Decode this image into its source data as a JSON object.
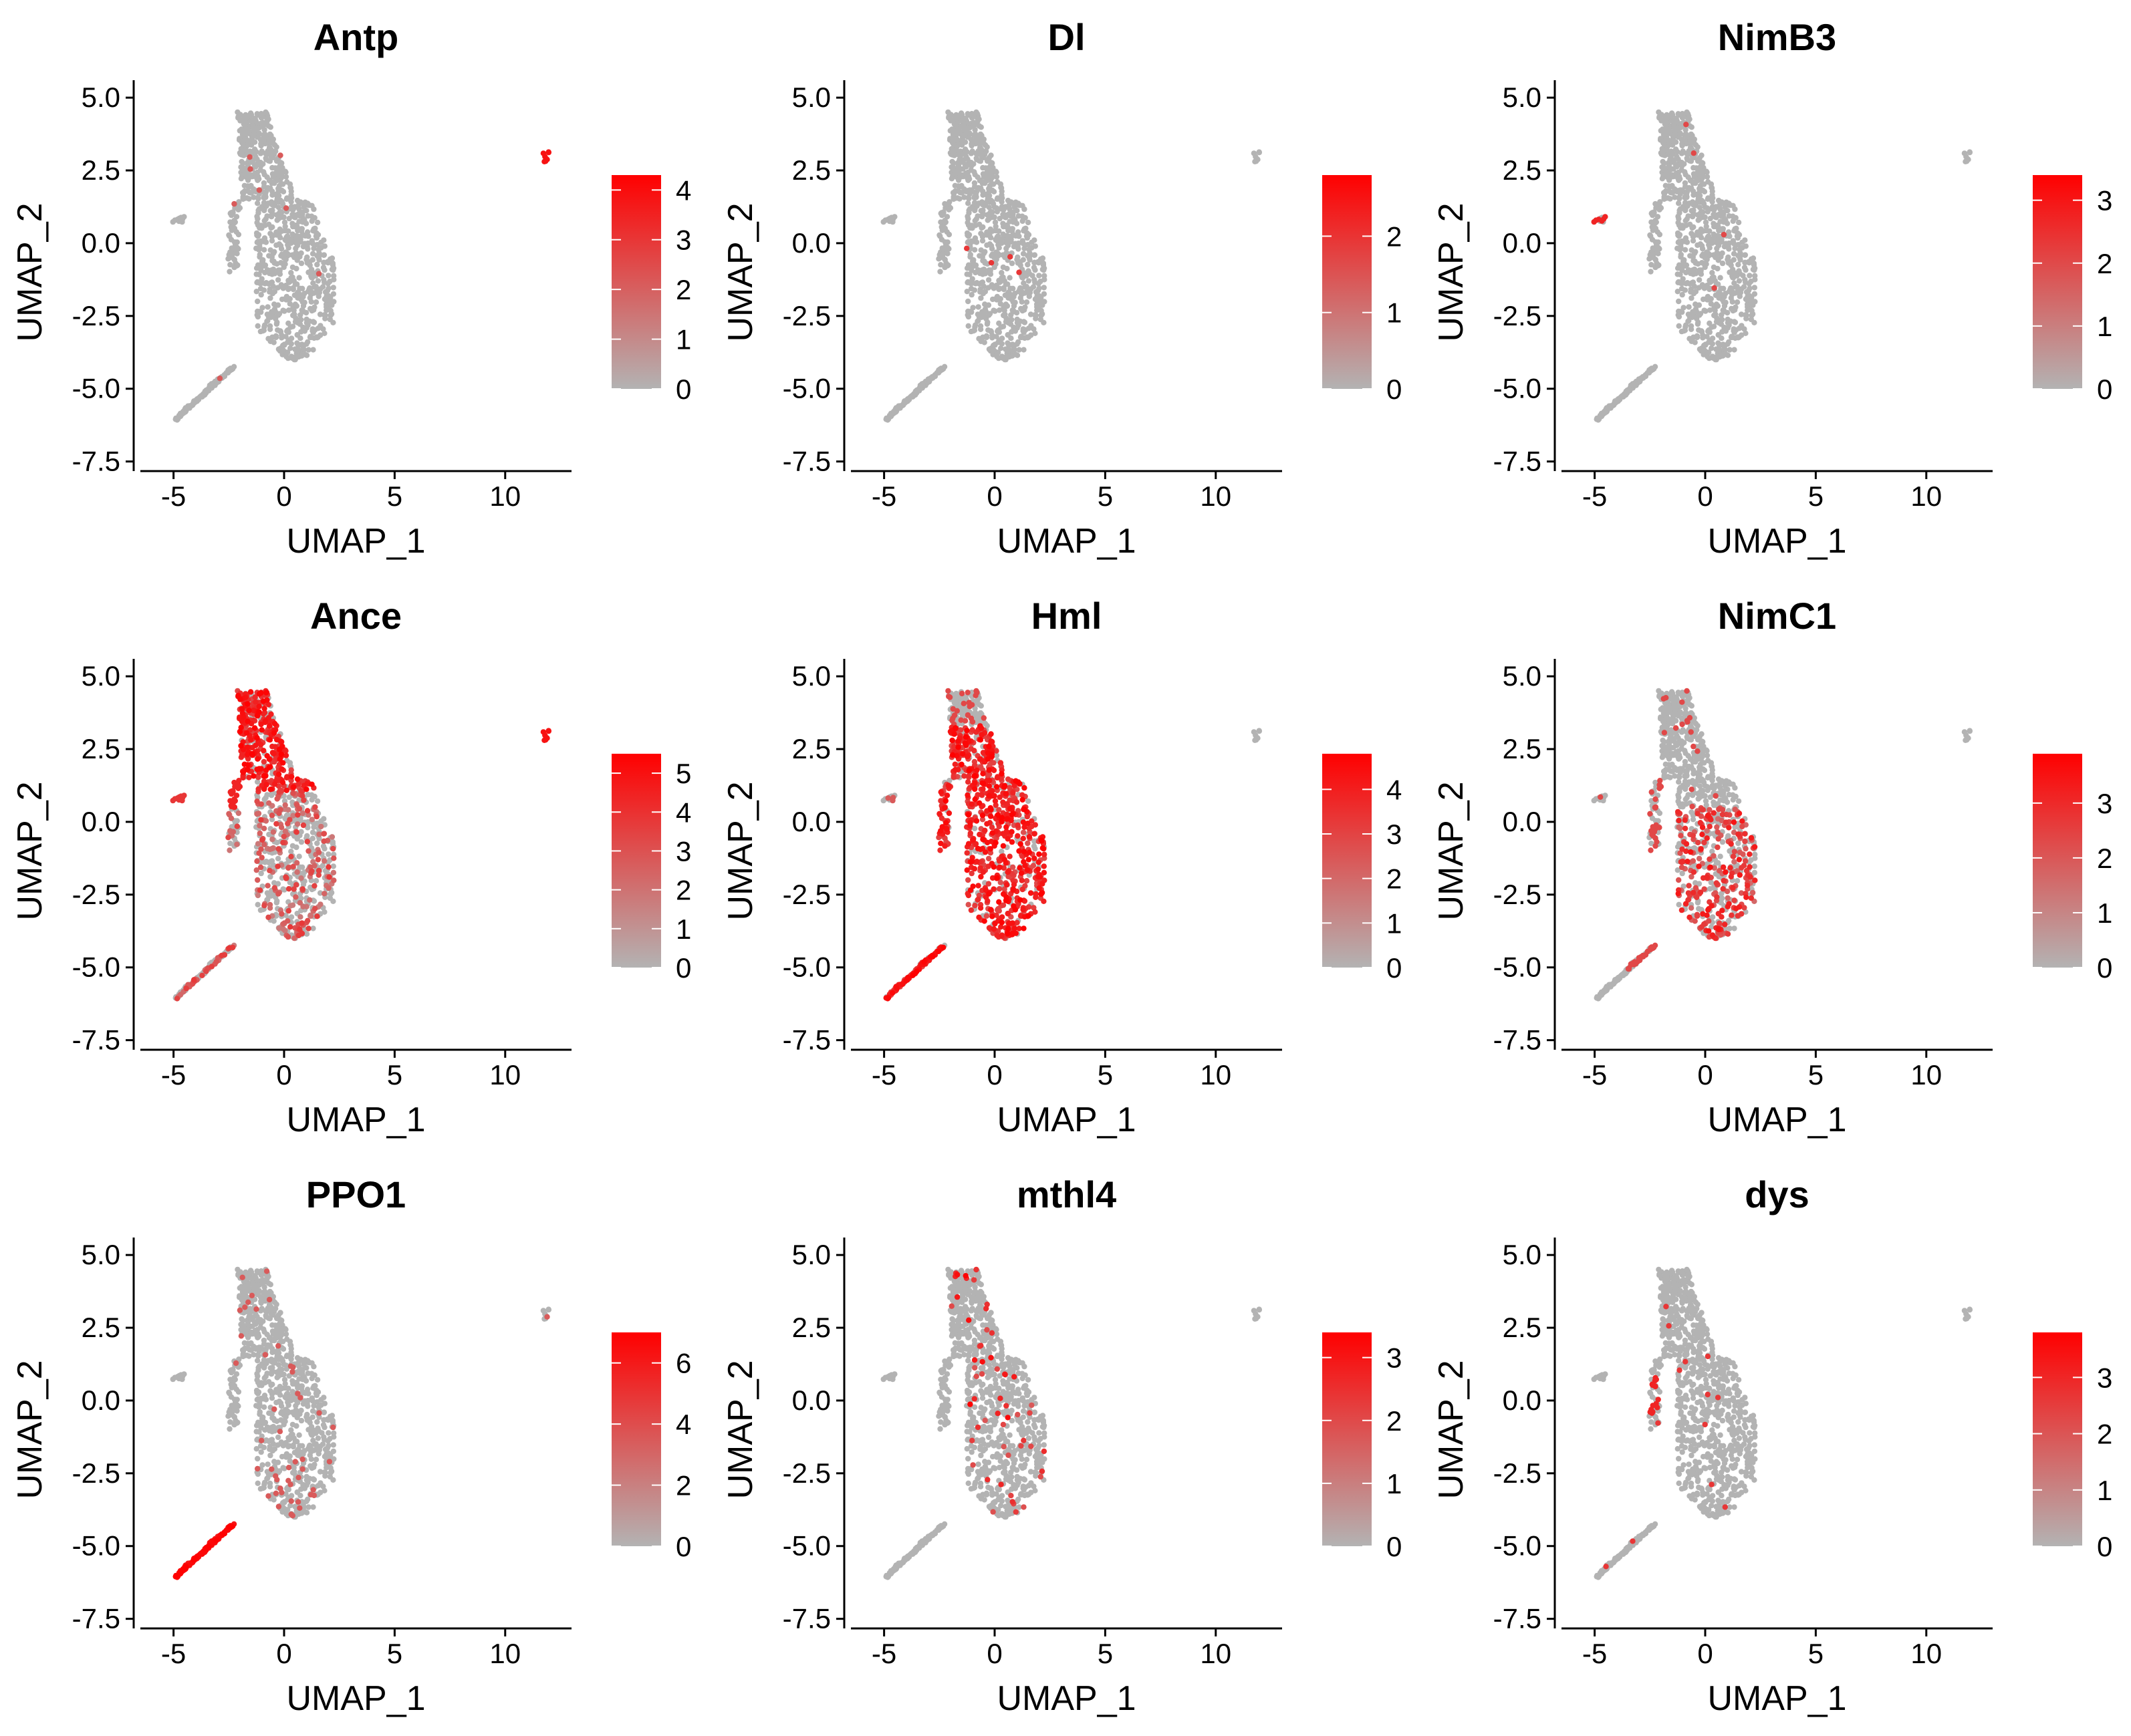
{
  "figure": {
    "colors": {
      "low": "#b3b3b3",
      "high": "#ff0000",
      "axis": "#000000",
      "background": "#ffffff"
    }
  },
  "chart_data": [
    {
      "type": "scatter",
      "title": "Antp",
      "xlabel": "UMAP_1",
      "ylabel": "UMAP_2",
      "xlim": [
        -6.5,
        13
      ],
      "ylim": [
        -7.6,
        5.6
      ],
      "xticks": [
        "-5",
        "0",
        "5",
        "10"
      ],
      "yticks": [
        "5.0",
        "2.5",
        "0.0",
        "-2.5",
        "-5.0",
        "-7.5"
      ],
      "legend": {
        "range": [
          0,
          4.3
        ],
        "ticks": [
          "4",
          "3",
          "2",
          "1",
          "0"
        ],
        "tick_values": [
          4,
          3,
          2,
          1,
          0
        ]
      },
      "highlight": "island"
    },
    {
      "type": "scatter",
      "title": "Dl",
      "xlabel": "UMAP_1",
      "ylabel": "UMAP_2",
      "xlim": [
        -6.5,
        13
      ],
      "ylim": [
        -7.6,
        5.6
      ],
      "xticks": [
        "-5",
        "0",
        "5",
        "10"
      ],
      "yticks": [
        "5.0",
        "2.5",
        "0.0",
        "-2.5",
        "-5.0",
        "-7.5"
      ],
      "legend": {
        "range": [
          0,
          2.8
        ],
        "ticks": [
          "2",
          "1",
          "0"
        ],
        "tick_values": [
          2,
          1,
          0
        ]
      },
      "highlight": "few"
    },
    {
      "type": "scatter",
      "title": "NimB3",
      "xlabel": "UMAP_1",
      "ylabel": "UMAP_2",
      "xlim": [
        -6.5,
        13
      ],
      "ylim": [
        -7.6,
        5.6
      ],
      "xticks": [
        "-5",
        "0",
        "5",
        "10"
      ],
      "yticks": [
        "5.0",
        "2.5",
        "0.0",
        "-2.5",
        "-5.0",
        "-7.5"
      ],
      "legend": {
        "range": [
          0,
          3.4
        ],
        "ticks": [
          "3",
          "2",
          "1",
          "0"
        ],
        "tick_values": [
          3,
          2,
          1,
          0
        ]
      },
      "highlight": "small-left"
    },
    {
      "type": "scatter",
      "title": "Ance",
      "xlabel": "UMAP_1",
      "ylabel": "UMAP_2",
      "xlim": [
        -6.5,
        13
      ],
      "ylim": [
        -7.6,
        5.6
      ],
      "xticks": [
        "-5",
        "0",
        "5",
        "10"
      ],
      "yticks": [
        "5.0",
        "2.5",
        "0.0",
        "-2.5",
        "-5.0",
        "-7.5"
      ],
      "legend": {
        "range": [
          0,
          5.5
        ],
        "ticks": [
          "5",
          "4",
          "3",
          "2",
          "1",
          "0"
        ],
        "tick_values": [
          5,
          4,
          3,
          2,
          1,
          0
        ]
      },
      "highlight": "upper"
    },
    {
      "type": "scatter",
      "title": "Hml",
      "xlabel": "UMAP_1",
      "ylabel": "UMAP_2",
      "xlim": [
        -6.5,
        13
      ],
      "ylim": [
        -7.6,
        5.6
      ],
      "xticks": [
        "-5",
        "0",
        "5",
        "10"
      ],
      "yticks": [
        "5.0",
        "2.5",
        "0.0",
        "-2.5",
        "-5.0",
        "-7.5"
      ],
      "legend": {
        "range": [
          0,
          4.8
        ],
        "ticks": [
          "4",
          "3",
          "2",
          "1",
          "0"
        ],
        "tick_values": [
          4,
          3,
          2,
          1,
          0
        ]
      },
      "highlight": "broad"
    },
    {
      "type": "scatter",
      "title": "NimC1",
      "xlabel": "UMAP_1",
      "ylabel": "UMAP_2",
      "xlim": [
        -6.5,
        13
      ],
      "ylim": [
        -7.6,
        5.6
      ],
      "xticks": [
        "-5",
        "0",
        "5",
        "10"
      ],
      "yticks": [
        "5.0",
        "2.5",
        "0.0",
        "-2.5",
        "-5.0",
        "-7.5"
      ],
      "legend": {
        "range": [
          0,
          3.9
        ],
        "ticks": [
          "3",
          "2",
          "1",
          "0"
        ],
        "tick_values": [
          3,
          2,
          1,
          0
        ]
      },
      "highlight": "lower"
    },
    {
      "type": "scatter",
      "title": "PPO1",
      "xlabel": "UMAP_1",
      "ylabel": "UMAP_2",
      "xlim": [
        -6.5,
        13
      ],
      "ylim": [
        -7.6,
        5.6
      ],
      "xticks": [
        "-5",
        "0",
        "5",
        "10"
      ],
      "yticks": [
        "5.0",
        "2.5",
        "0.0",
        "-2.5",
        "-5.0",
        "-7.5"
      ],
      "legend": {
        "range": [
          0,
          7.0
        ],
        "ticks": [
          "6",
          "4",
          "2",
          "0"
        ],
        "tick_values": [
          6,
          4,
          2,
          0
        ]
      },
      "highlight": "tail"
    },
    {
      "type": "scatter",
      "title": "mthl4",
      "xlabel": "UMAP_1",
      "ylabel": "UMAP_2",
      "xlim": [
        -6.5,
        13
      ],
      "ylim": [
        -7.6,
        5.6
      ],
      "xticks": [
        "-5",
        "0",
        "5",
        "10"
      ],
      "yticks": [
        "5.0",
        "2.5",
        "0.0",
        "-2.5",
        "-5.0",
        "-7.5"
      ],
      "legend": {
        "range": [
          0,
          3.4
        ],
        "ticks": [
          "3",
          "2",
          "1",
          "0"
        ],
        "tick_values": [
          3,
          2,
          1,
          0
        ]
      },
      "highlight": "scattered"
    },
    {
      "type": "scatter",
      "title": "dys",
      "xlabel": "UMAP_1",
      "ylabel": "UMAP_2",
      "xlim": [
        -6.5,
        13
      ],
      "ylim": [
        -7.6,
        5.6
      ],
      "xticks": [
        "-5",
        "0",
        "5",
        "10"
      ],
      "yticks": [
        "5.0",
        "2.5",
        "0.0",
        "-2.5",
        "-5.0",
        "-7.5"
      ],
      "legend": {
        "range": [
          0,
          3.8
        ],
        "ticks": [
          "3",
          "2",
          "1",
          "0"
        ],
        "tick_values": [
          3,
          2,
          1,
          0
        ]
      },
      "highlight": "left-cluster"
    }
  ]
}
